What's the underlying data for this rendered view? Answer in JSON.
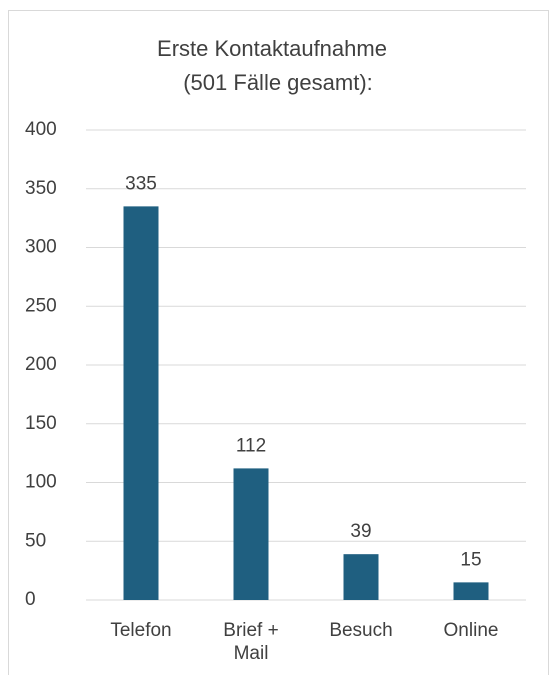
{
  "chart_data": {
    "type": "bar",
    "title": "Erste Kontaktaufnahme",
    "subtitle": "(501 Fälle gesamt):",
    "categories": [
      "Telefon",
      "Brief + Mail",
      "Besuch",
      "Online"
    ],
    "values": [
      335,
      112,
      39,
      15
    ],
    "color": "#1f5f80",
    "ylim": [
      0,
      400
    ],
    "yticks": [
      0,
      50,
      100,
      150,
      200,
      250,
      300,
      350,
      400
    ],
    "grid": true
  }
}
